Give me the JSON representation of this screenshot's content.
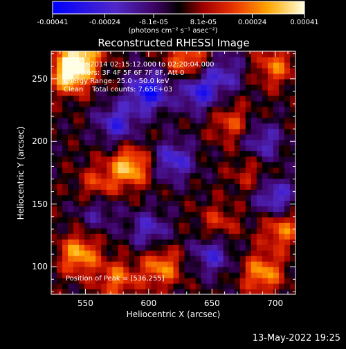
{
  "chart_data": {
    "type": "heatmap",
    "title": "Reconstructed RHESSI Image",
    "xlabel": "Heliocentric X (arcsec)",
    "ylabel": "Heliocentric Y (arcsec)",
    "xlim": [
      523,
      716
    ],
    "ylim": [
      78,
      272
    ],
    "x_ticks": [
      "550",
      "600",
      "650",
      "700"
    ],
    "x_tick_values": [
      550,
      600,
      650,
      700
    ],
    "y_ticks": [
      "100",
      "150",
      "200",
      "250"
    ],
    "y_tick_values": [
      100,
      150,
      200,
      250
    ],
    "colorbar": {
      "ticks": [
        "-0.00041",
        "-0.00024",
        "-8.1e-05",
        "8.1e-05",
        "0.00024",
        "0.00041"
      ],
      "tick_values": [
        -0.00041,
        -0.00024,
        -8.1e-05,
        8.1e-05,
        0.00024,
        0.00041
      ],
      "range": [
        -0.00041,
        0.00041
      ],
      "units": "(photons cm⁻² s⁻¹ asec⁻²)"
    },
    "annotations": [
      "13-Mar-2014 02:15:12.000 to 02:20:04.000",
      "Detectors: 3F 4F 5F 6F 7F 8F, Att 0",
      "Energy Range: 25.0 - 50.0 keV",
      "Clean    Total counts: 7.65E+03"
    ],
    "peak_label": "Position of Peak = [536,255]",
    "peak_position": [
      536,
      255
    ],
    "intensity_centers": [
      {
        "x": 538,
        "y": 255,
        "value": 0.00041
      },
      {
        "x": 548,
        "y": 270,
        "value": 0.0003
      },
      {
        "x": 585,
        "y": 180,
        "value": 0.00033
      },
      {
        "x": 560,
        "y": 165,
        "value": 0.00018
      },
      {
        "x": 545,
        "y": 110,
        "value": 0.0003
      },
      {
        "x": 610,
        "y": 100,
        "value": 0.00026
      },
      {
        "x": 575,
        "y": 90,
        "value": 0.00022
      },
      {
        "x": 690,
        "y": 95,
        "value": 0.00028
      },
      {
        "x": 705,
        "y": 130,
        "value": 0.00024
      },
      {
        "x": 630,
        "y": 265,
        "value": 0.00025
      },
      {
        "x": 700,
        "y": 260,
        "value": 0.00022
      },
      {
        "x": 665,
        "y": 215,
        "value": 0.00018
      },
      {
        "x": 655,
        "y": 135,
        "value": 0.00015
      },
      {
        "x": 680,
        "y": 175,
        "value": 0.00012
      },
      {
        "x": 600,
        "y": 240,
        "value": -0.00035
      },
      {
        "x": 640,
        "y": 240,
        "value": -0.00028
      },
      {
        "x": 575,
        "y": 215,
        "value": -0.00025
      },
      {
        "x": 620,
        "y": 185,
        "value": -0.00025
      },
      {
        "x": 700,
        "y": 155,
        "value": -0.00025
      },
      {
        "x": 560,
        "y": 145,
        "value": -0.00015
      },
      {
        "x": 600,
        "y": 130,
        "value": -0.0002
      },
      {
        "x": 650,
        "y": 110,
        "value": -0.00022
      },
      {
        "x": 690,
        "y": 200,
        "value": -0.0002
      },
      {
        "x": 660,
        "y": 255,
        "value": -0.00018
      }
    ]
  },
  "footer": {
    "date_stamp": "13-May-2022 19:25"
  }
}
